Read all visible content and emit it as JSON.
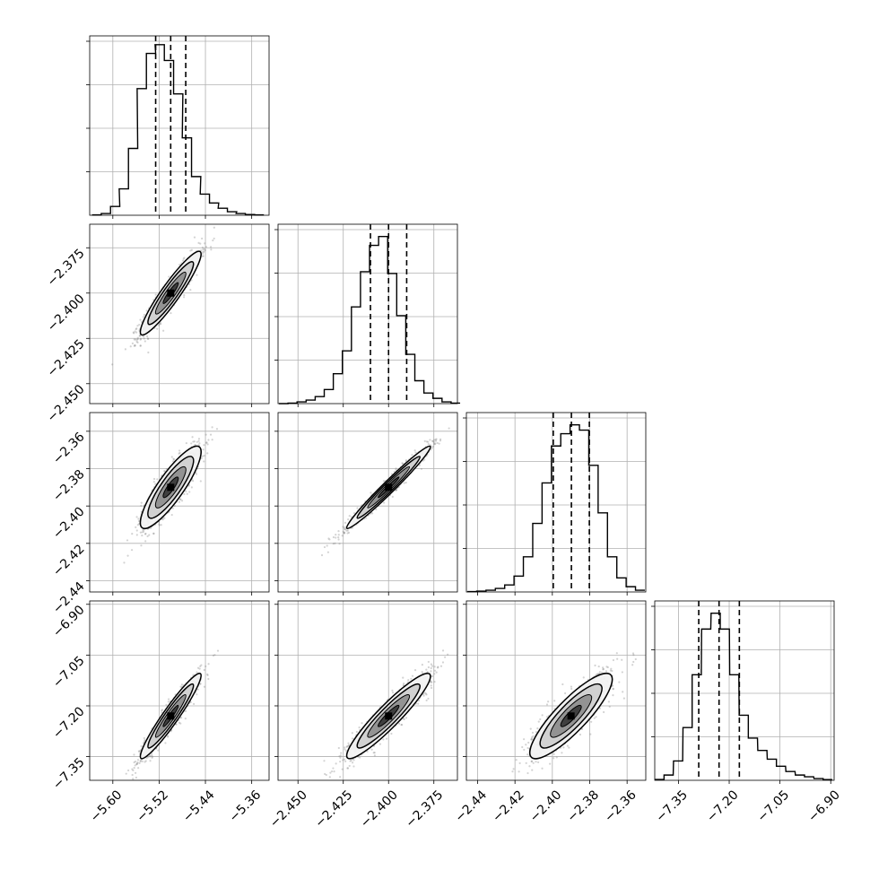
{
  "chart_data": {
    "type": "corner",
    "grid": true,
    "style": "black-and-white",
    "parameters": [
      {
        "range": [
          -5.64,
          -5.33
        ],
        "ticks": [
          -5.6,
          -5.52,
          -5.44,
          -5.36
        ],
        "tick_labels": [
          "−5.60",
          "−5.52",
          "−5.44",
          "−5.36"
        ],
        "quantiles": [
          -5.526,
          -5.5,
          -5.474
        ]
      },
      {
        "range": [
          -2.461,
          -2.362
        ],
        "ticks": [
          -2.45,
          -2.425,
          -2.4,
          -2.375
        ],
        "tick_labels": [
          "−2.450",
          "−2.425",
          "−2.400",
          "−2.375"
        ],
        "quantiles": [
          -2.41,
          -2.4,
          -2.39
        ]
      },
      {
        "range": [
          -2.446,
          -2.35
        ],
        "ticks": [
          -2.44,
          -2.42,
          -2.4,
          -2.38,
          -2.36
        ],
        "tick_labels": [
          "−2.44",
          "−2.42",
          "−2.40",
          "−2.38",
          "−2.36"
        ],
        "quantiles": [
          -2.3995,
          -2.3898,
          -2.3802
        ]
      },
      {
        "range": [
          -7.42,
          -6.89
        ],
        "ticks": [
          -7.35,
          -7.2,
          -7.05,
          -6.9
        ],
        "tick_labels": [
          "−7.35",
          "−7.20",
          "−7.05",
          "−6.90"
        ],
        "quantiles": [
          -7.29,
          -7.23,
          -7.17
        ]
      }
    ],
    "histograms": [
      {
        "bin_centers": [
          -5.628,
          -5.612,
          -5.596,
          -5.581,
          -5.565,
          -5.55,
          -5.534,
          -5.519,
          -5.503,
          -5.487,
          -5.472,
          -5.456,
          -5.441,
          -5.425,
          -5.41,
          -5.394,
          -5.379,
          -5.363,
          -5.347
        ],
        "counts": [
          0.002,
          0.01,
          0.05,
          0.15,
          0.38,
          0.72,
          0.92,
          0.97,
          0.88,
          0.69,
          0.44,
          0.22,
          0.12,
          0.07,
          0.04,
          0.02,
          0.01,
          0.004,
          0.002
        ]
      },
      {
        "bin_centers": [
          -2.458,
          -2.453,
          -2.448,
          -2.443,
          -2.438,
          -2.433,
          -2.428,
          -2.423,
          -2.418,
          -2.413,
          -2.408,
          -2.403,
          -2.398,
          -2.393,
          -2.388,
          -2.383,
          -2.378,
          -2.373,
          -2.368,
          -2.363
        ],
        "counts": [
          0.0,
          0.003,
          0.01,
          0.02,
          0.04,
          0.08,
          0.17,
          0.3,
          0.55,
          0.75,
          0.9,
          0.95,
          0.74,
          0.5,
          0.28,
          0.13,
          0.06,
          0.03,
          0.01,
          0.003
        ]
      },
      {
        "bin_centers": [
          -2.443,
          -2.438,
          -2.433,
          -2.428,
          -2.423,
          -2.418,
          -2.413,
          -2.408,
          -2.403,
          -2.398,
          -2.393,
          -2.388,
          -2.383,
          -2.378,
          -2.373,
          -2.368,
          -2.363,
          -2.358,
          -2.353
        ],
        "counts": [
          0.002,
          0.005,
          0.01,
          0.02,
          0.04,
          0.09,
          0.2,
          0.39,
          0.62,
          0.83,
          0.9,
          0.95,
          0.92,
          0.72,
          0.45,
          0.2,
          0.08,
          0.03,
          0.01
        ]
      },
      {
        "bin_centers": [
          -7.406,
          -7.379,
          -7.351,
          -7.323,
          -7.296,
          -7.268,
          -7.24,
          -7.213,
          -7.185,
          -7.157,
          -7.13,
          -7.102,
          -7.074,
          -7.047,
          -7.019,
          -6.991,
          -6.964,
          -6.936,
          -6.909
        ],
        "counts": [
          0.005,
          0.03,
          0.11,
          0.3,
          0.6,
          0.86,
          0.95,
          0.86,
          0.6,
          0.37,
          0.24,
          0.17,
          0.12,
          0.08,
          0.05,
          0.03,
          0.02,
          0.01,
          0.004
        ]
      }
    ],
    "pairs": [
      {
        "x_param": 0,
        "y_param": 1,
        "mean": [
          -5.5,
          -2.4
        ],
        "std": [
          0.025,
          0.011
        ],
        "corr": 0.93
      },
      {
        "x_param": 0,
        "y_param": 2,
        "mean": [
          -5.5,
          -2.39
        ],
        "std": [
          0.025,
          0.0105
        ],
        "corr": 0.86
      },
      {
        "x_param": 1,
        "y_param": 2,
        "mean": [
          -2.4,
          -2.39
        ],
        "std": [
          0.011,
          0.0105
        ],
        "corr": 0.98
      },
      {
        "x_param": 0,
        "y_param": 3,
        "mean": [
          -5.5,
          -7.23
        ],
        "std": [
          0.025,
          0.06
        ],
        "corr": 0.95
      },
      {
        "x_param": 1,
        "y_param": 3,
        "mean": [
          -2.4,
          -7.23
        ],
        "std": [
          0.011,
          0.06
        ],
        "corr": 0.93
      },
      {
        "x_param": 2,
        "y_param": 3,
        "mean": [
          -2.39,
          -7.23
        ],
        "std": [
          0.0105,
          0.06
        ],
        "corr": 0.86
      }
    ],
    "contour_levels_sigma": [
      0.5,
      1.0,
      1.5,
      2.0
    ],
    "scatter_samples_per_panel": 1100
  }
}
